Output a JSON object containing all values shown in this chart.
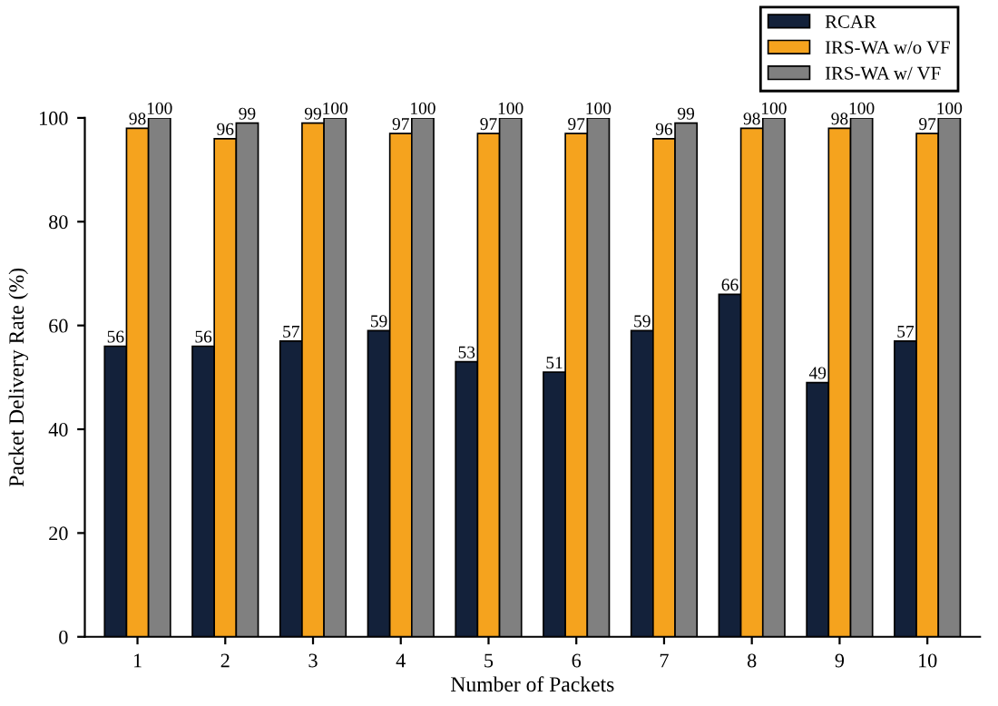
{
  "chart_data": {
    "type": "bar",
    "xlabel": "Number of Packets",
    "ylabel": "Packet Delivery Rate (%)",
    "categories": [
      "1",
      "2",
      "3",
      "4",
      "5",
      "6",
      "7",
      "8",
      "9",
      "10"
    ],
    "series": [
      {
        "name": "RCAR",
        "color": "#13213a",
        "values": [
          56,
          56,
          57,
          59,
          53,
          51,
          59,
          66,
          49,
          57
        ]
      },
      {
        "name": "IRS-WA w/o VF",
        "color": "#f5a31e",
        "values": [
          98,
          96,
          99,
          97,
          97,
          97,
          96,
          98,
          98,
          97
        ]
      },
      {
        "name": "IRS-WA w/ VF",
        "color": "#808080",
        "values": [
          100,
          99,
          100,
          100,
          100,
          100,
          99,
          100,
          100,
          100
        ]
      }
    ],
    "ylim": [
      0,
      100
    ],
    "yticks": [
      0,
      20,
      40,
      60,
      80,
      100
    ],
    "data_labels": true,
    "legend": "top right",
    "grid": false
  }
}
